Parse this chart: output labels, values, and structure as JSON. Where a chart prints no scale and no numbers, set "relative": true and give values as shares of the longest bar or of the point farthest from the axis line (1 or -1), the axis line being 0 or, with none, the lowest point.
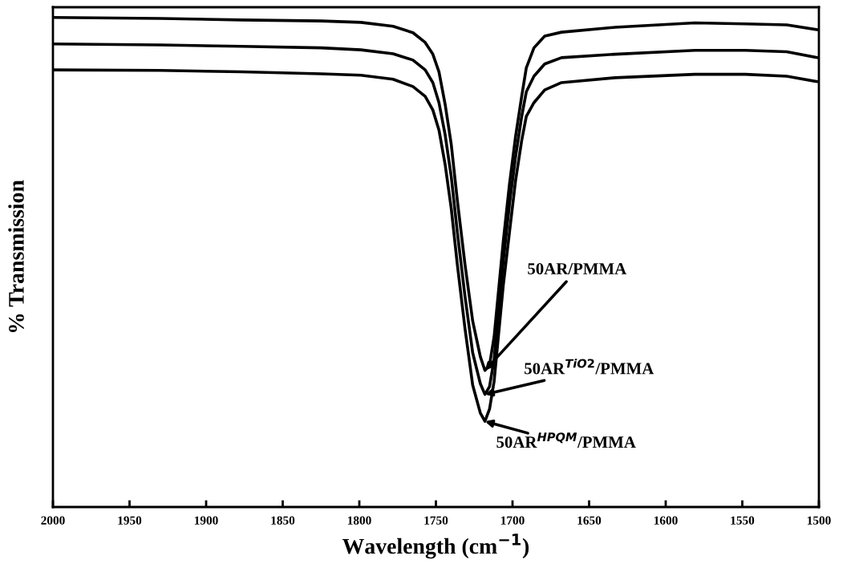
{
  "chart_data": {
    "type": "line",
    "relative": true,
    "xlabel": "Wavelength (cm$^{−1}$)",
    "ylabel": "% Transmission",
    "x": [
      2000,
      1930,
      1877,
      1825,
      1799,
      1778,
      1765,
      1757,
      1752,
      1748,
      1744,
      1740,
      1736,
      1731,
      1726,
      1721,
      1718,
      1715,
      1712,
      1709,
      1706,
      1702,
      1698,
      1694,
      1691,
      1686,
      1679,
      1668,
      1633,
      1581,
      1548,
      1521,
      1501
    ],
    "xlim": [
      2000,
      1500
    ],
    "xticks": [
      2000,
      1950,
      1900,
      1850,
      1800,
      1750,
      1700,
      1650,
      1600,
      1550,
      1500
    ],
    "tick_labels": "x",
    "grid": false,
    "series": [
      {
        "name": "50AR/PMMA",
        "color": "#000000",
        "values": [
          1.0,
          0.998,
          0.995,
          0.993,
          0.99,
          0.982,
          0.969,
          0.949,
          0.925,
          0.889,
          0.823,
          0.741,
          0.626,
          0.495,
          0.38,
          0.307,
          0.279,
          0.29,
          0.348,
          0.446,
          0.544,
          0.659,
          0.757,
          0.839,
          0.897,
          0.938,
          0.962,
          0.97,
          0.98,
          0.989,
          0.987,
          0.985,
          0.975
        ]
      },
      {
        "name": "50AR$^{TiO2}$/PMMA",
        "color": "#000000",
        "values": [
          0.946,
          0.944,
          0.941,
          0.938,
          0.934,
          0.926,
          0.913,
          0.893,
          0.867,
          0.826,
          0.761,
          0.675,
          0.561,
          0.43,
          0.315,
          0.252,
          0.23,
          0.246,
          0.302,
          0.405,
          0.503,
          0.618,
          0.716,
          0.798,
          0.848,
          0.88,
          0.905,
          0.918,
          0.925,
          0.933,
          0.933,
          0.93,
          0.918
        ]
      },
      {
        "name": "50AR$^{HPQM}$/PMMA",
        "color": "#000000",
        "values": [
          0.893,
          0.892,
          0.889,
          0.885,
          0.882,
          0.874,
          0.859,
          0.839,
          0.811,
          0.77,
          0.7,
          0.61,
          0.495,
          0.364,
          0.249,
          0.192,
          0.175,
          0.2,
          0.257,
          0.356,
          0.454,
          0.561,
          0.667,
          0.749,
          0.798,
          0.826,
          0.852,
          0.867,
          0.877,
          0.884,
          0.884,
          0.88,
          0.869
        ]
      }
    ]
  }
}
